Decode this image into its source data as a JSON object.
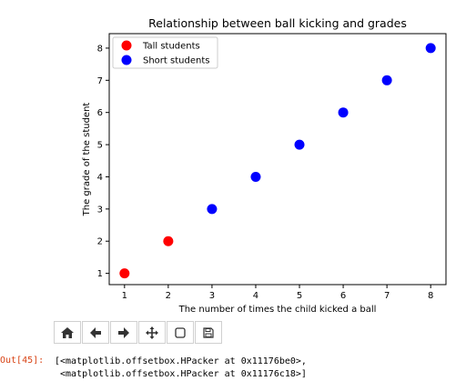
{
  "chart_data": {
    "type": "scatter",
    "title": "Relationship between ball kicking and grades",
    "xlabel": "The number of times the child kicked a ball",
    "ylabel": "The grade of the student",
    "xlim": [
      0.65,
      8.35
    ],
    "ylim": [
      0.65,
      8.45
    ],
    "xticks": [
      1,
      2,
      3,
      4,
      5,
      6,
      7,
      8
    ],
    "yticks": [
      1,
      2,
      3,
      4,
      5,
      6,
      7,
      8
    ],
    "legend_position": "top-left",
    "series": [
      {
        "name": "Tall students",
        "color": "#ff0000",
        "points": [
          {
            "x": 1,
            "y": 1
          },
          {
            "x": 2,
            "y": 2
          }
        ]
      },
      {
        "name": "Short students",
        "color": "#0000ff",
        "points": [
          {
            "x": 3,
            "y": 3
          },
          {
            "x": 4,
            "y": 4
          },
          {
            "x": 5,
            "y": 5
          },
          {
            "x": 6,
            "y": 6
          },
          {
            "x": 7,
            "y": 7
          },
          {
            "x": 8,
            "y": 8
          }
        ]
      }
    ]
  },
  "toolbar": {
    "buttons": [
      {
        "icon": "home-icon"
      },
      {
        "icon": "back-arrow-icon"
      },
      {
        "icon": "forward-arrow-icon"
      },
      {
        "icon": "pan-move-icon"
      },
      {
        "icon": "zoom-rect-icon"
      },
      {
        "icon": "save-icon"
      }
    ]
  },
  "output": {
    "prompt": "Out[45]:",
    "lines": [
      "[<matplotlib.offsetbox.HPacker at 0x11176be0>,",
      " <matplotlib.offsetbox.HPacker at 0x11176c18>]"
    ]
  }
}
